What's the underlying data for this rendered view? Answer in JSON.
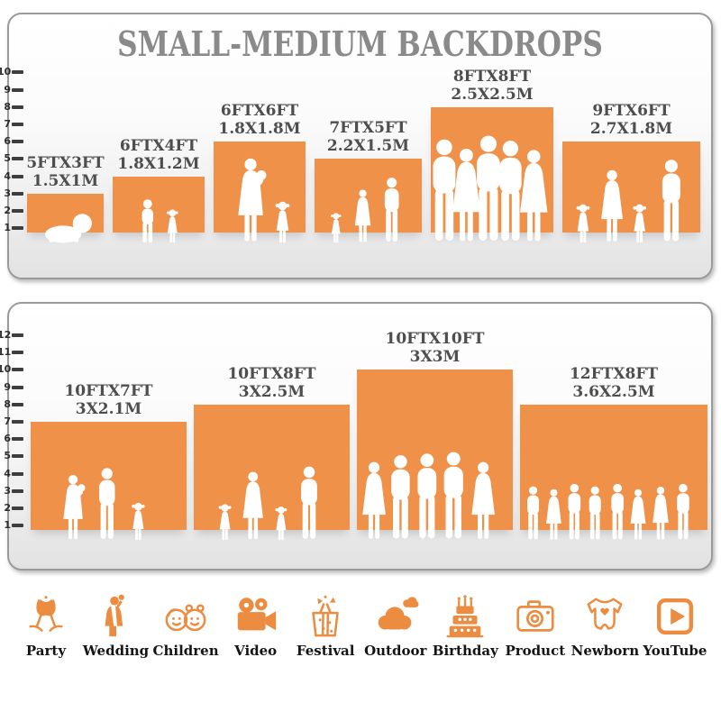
{
  "title": "SMALL-MEDIUM BACKDROPS",
  "colors": {
    "bar_orange": "#EF9149",
    "icon_orange": "#EB8C41",
    "title_gray": "#8A8A8A",
    "label_gray": "#4E4E4E",
    "tick_dark": "#3E3E3E"
  },
  "chart_data": [
    {
      "type": "bar",
      "panel": "top",
      "title": "SMALL-MEDIUM BACKDROPS",
      "categories": [
        "5FTX3FT",
        "6FTX4FT",
        "6FTX6FT",
        "7FTX5FT",
        "8FTX8FT",
        "9FTX6FT"
      ],
      "bar_labels_m": [
        "1.5X1M",
        "1.8X1.2M",
        "1.8X1.8M",
        "2.2X1.5M",
        "2.5X2.5M",
        "2.7X1.8M"
      ],
      "values": [
        3,
        4,
        6,
        5,
        8,
        6
      ],
      "bar_widths_ft": [
        5,
        6,
        6,
        7,
        8,
        9
      ],
      "ylim": [
        0,
        10
      ],
      "yticks": [
        1,
        2,
        3,
        4,
        5,
        6,
        7,
        8,
        9,
        10
      ],
      "grid": false,
      "figures": [
        [
          [
            "baby",
            0.52,
            0.82
          ]
        ],
        [
          [
            "boy",
            0.38,
            0.8
          ],
          [
            "girl",
            0.65,
            0.62
          ]
        ],
        [
          [
            "womanbaby",
            0.42,
            0.95
          ],
          [
            "girl",
            0.75,
            0.47
          ]
        ],
        [
          [
            "girl",
            0.2,
            0.42
          ],
          [
            "woman",
            0.45,
            0.74
          ],
          [
            "man",
            0.72,
            0.9
          ]
        ],
        [
          [
            "man",
            0.11,
            0.84
          ],
          [
            "woman",
            0.29,
            0.77
          ],
          [
            "man",
            0.47,
            0.87
          ],
          [
            "man",
            0.65,
            0.83
          ],
          [
            "woman",
            0.84,
            0.76
          ]
        ],
        [
          [
            "girl",
            0.15,
            0.44
          ],
          [
            "woman",
            0.36,
            0.82
          ],
          [
            "girl",
            0.56,
            0.44
          ],
          [
            "man",
            0.79,
            0.93
          ]
        ]
      ]
    },
    {
      "type": "bar",
      "panel": "bottom",
      "categories": [
        "10FTX7FT",
        "10FTX8FT",
        "10FTX10FT",
        "12FTX8FT"
      ],
      "bar_labels_m": [
        "3X2.1M",
        "3X2.5M",
        "3X3M",
        "3.6X2.5M"
      ],
      "values": [
        7,
        8,
        10,
        8
      ],
      "bar_widths_ft": [
        10,
        10,
        10,
        12
      ],
      "ylim": [
        0,
        12
      ],
      "yticks": [
        1,
        2,
        3,
        4,
        5,
        6,
        7,
        8,
        9,
        10,
        11,
        12
      ],
      "grid": false,
      "figures": [
        [
          [
            "womanbaby",
            0.28,
            0.62
          ],
          [
            "man",
            0.49,
            0.68
          ],
          [
            "girl",
            0.69,
            0.36
          ]
        ],
        [
          [
            "girl",
            0.2,
            0.3
          ],
          [
            "woman",
            0.38,
            0.56
          ],
          [
            "girl",
            0.56,
            0.28
          ],
          [
            "man",
            0.74,
            0.6
          ]
        ],
        [
          [
            "woman",
            0.11,
            0.5
          ],
          [
            "man",
            0.28,
            0.54
          ],
          [
            "man",
            0.45,
            0.55
          ],
          [
            "man",
            0.62,
            0.56
          ],
          [
            "woman",
            0.81,
            0.5
          ]
        ],
        [
          [
            "man",
            0.07,
            0.44
          ],
          [
            "woman",
            0.18,
            0.42
          ],
          [
            "man",
            0.29,
            0.46
          ],
          [
            "man",
            0.4,
            0.44
          ],
          [
            "man",
            0.52,
            0.46
          ],
          [
            "woman",
            0.63,
            0.42
          ],
          [
            "woman",
            0.75,
            0.44
          ],
          [
            "man",
            0.87,
            0.46
          ]
        ]
      ]
    }
  ],
  "categories_row": [
    {
      "label": "Party",
      "icon": "party-icon"
    },
    {
      "label": "Wedding",
      "icon": "wedding-icon"
    },
    {
      "label": "Children",
      "icon": "children-icon"
    },
    {
      "label": "Video",
      "icon": "video-icon"
    },
    {
      "label": "Festival",
      "icon": "festival-icon"
    },
    {
      "label": "Outdoor",
      "icon": "outdoor-icon"
    },
    {
      "label": "Birthday",
      "icon": "birthday-icon"
    },
    {
      "label": "Product",
      "icon": "product-icon"
    },
    {
      "label": "Newborn",
      "icon": "newborn-icon"
    },
    {
      "label": "YouTube",
      "icon": "youtube-icon"
    }
  ]
}
